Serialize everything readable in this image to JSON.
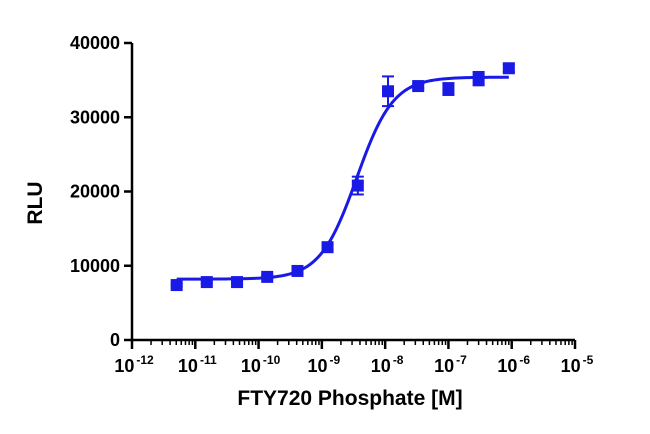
{
  "chart_data": {
    "type": "scatter",
    "title": "",
    "xlabel": "FTY720 Phosphate [M]",
    "ylabel": "RLU",
    "x_scale": "log10",
    "xlim": [
      1e-12,
      1e-05
    ],
    "ylim": [
      0,
      40000
    ],
    "x_tick_labels": [
      {
        "base": "10",
        "exp": "-12"
      },
      {
        "base": "10",
        "exp": "-11"
      },
      {
        "base": "10",
        "exp": "-10"
      },
      {
        "base": "10",
        "exp": "-9"
      },
      {
        "base": "10",
        "exp": "-8"
      },
      {
        "base": "10",
        "exp": "-7"
      },
      {
        "base": "10",
        "exp": "-6"
      },
      {
        "base": "10",
        "exp": "-5"
      }
    ],
    "y_tick_labels": [
      "0",
      "10000",
      "20000",
      "30000",
      "40000"
    ],
    "grid": false,
    "legend": "none",
    "series": [
      {
        "color": "#1a1ae6",
        "marker": "square",
        "x": [
          5.08e-12,
          1.52e-11,
          4.57e-11,
          1.37e-10,
          4.12e-10,
          1.23e-09,
          3.7e-09,
          1.11e-08,
          3.33e-08,
          1e-07,
          3e-07,
          9e-07
        ],
        "y": [
          7400,
          7800,
          7800,
          8500,
          9300,
          12500,
          20800,
          33500,
          34200,
          33800,
          35200,
          36600
        ],
        "error": [
          200,
          200,
          200,
          200,
          200,
          300,
          1200,
          2000,
          300,
          800,
          900,
          500
        ]
      }
    ],
    "fit_curve": {
      "type": "sigmoidal dose-response",
      "bottom": 8200,
      "top": 35400,
      "logEC50": -8.45,
      "hill_slope": 1.5,
      "x_range": [
        5.08e-12,
        9e-07
      ],
      "color": "#1a1ae6"
    }
  }
}
